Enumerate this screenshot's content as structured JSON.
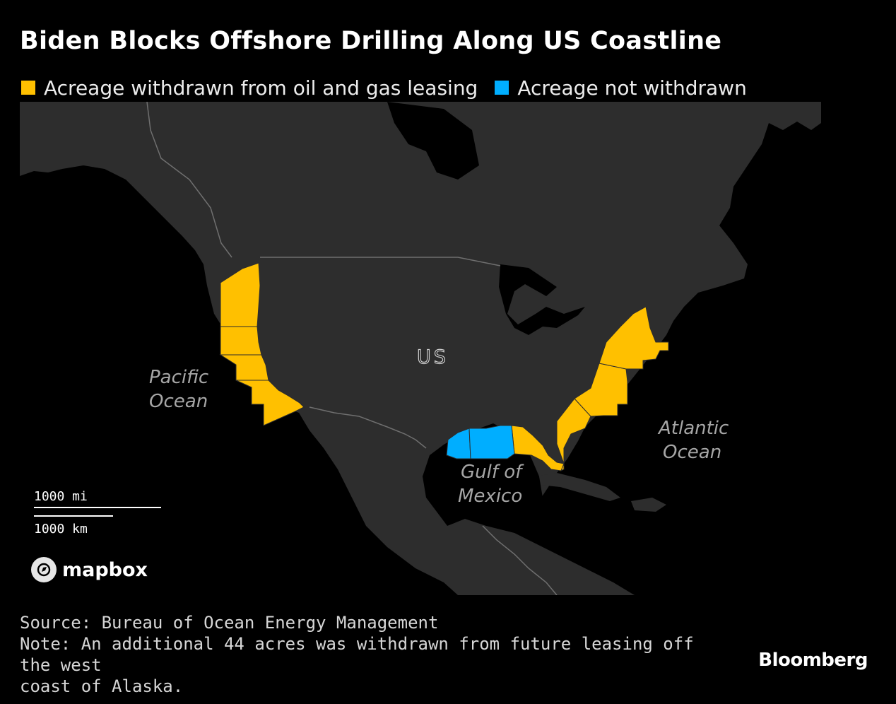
{
  "title": "Biden Blocks Offshore Drilling Along US Coastline",
  "legend": [
    {
      "label": "Acreage withdrawn from oil and gas leasing",
      "color": "#ffc000"
    },
    {
      "label": "Acreage not withdrawn",
      "color": "#00aeff"
    }
  ],
  "map": {
    "land_color": "#2d2d2d",
    "ocean_color": "#000000",
    "border_color": "#6f6f6f",
    "labels": {
      "country": "US",
      "pacific_line1": "Pacific",
      "pacific_line2": "Ocean",
      "atlantic_line1": "Atlantic",
      "atlantic_line2": "Ocean",
      "gulf_line1": "Gulf of",
      "gulf_line2": "Mexico"
    },
    "regions": [
      {
        "name": "Washington/Oregon offshore",
        "status": "withdrawn"
      },
      {
        "name": "Northern California offshore",
        "status": "withdrawn"
      },
      {
        "name": "Central California offshore",
        "status": "withdrawn"
      },
      {
        "name": "Southern California offshore",
        "status": "withdrawn"
      },
      {
        "name": "Western Gulf of Mexico",
        "status": "not withdrawn"
      },
      {
        "name": "Central Gulf of Mexico",
        "status": "not withdrawn"
      },
      {
        "name": "Eastern Gulf of Mexico",
        "status": "withdrawn"
      },
      {
        "name": "South Atlantic",
        "status": "withdrawn"
      },
      {
        "name": "Mid-Atlantic",
        "status": "withdrawn"
      },
      {
        "name": "North Atlantic",
        "status": "withdrawn"
      }
    ],
    "scale": {
      "miles_label": "1000 mi",
      "km_label": "1000 km"
    },
    "attribution": "mapbox"
  },
  "footer": {
    "source": "Source: Bureau of Ocean Energy Management",
    "note_line1": "Note: An additional 44 acres was withdrawn from future leasing off the west",
    "note_line2": "coast of Alaska."
  },
  "brand": "Bloomberg"
}
